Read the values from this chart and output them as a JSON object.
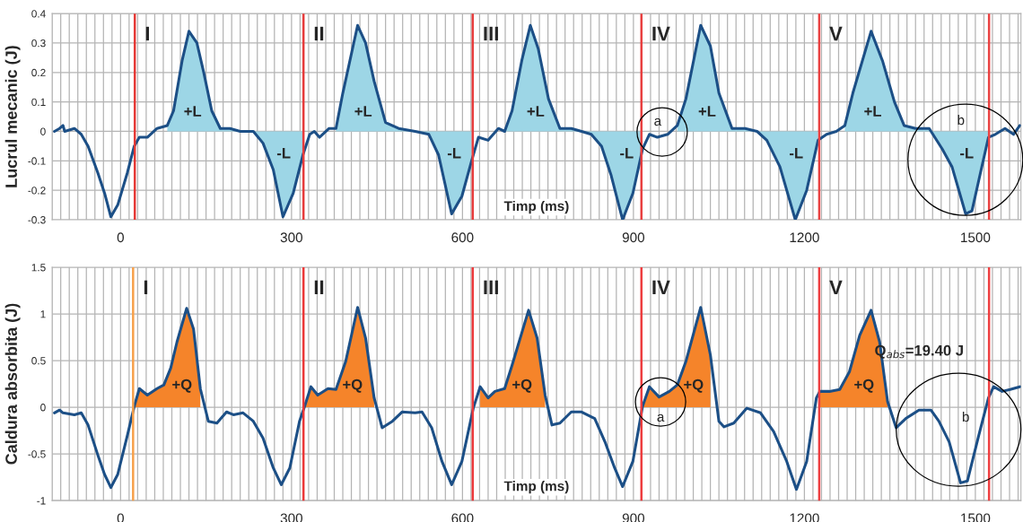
{
  "chart_data": [
    {
      "type": "line",
      "ylabel": "Lucrul mecanic (J)",
      "xlabel": "Timp (ms)",
      "x": [
        -116,
        -107,
        -101,
        -98,
        -81,
        -69,
        -57,
        -40,
        -28,
        -17,
        -5,
        12,
        24,
        33,
        47,
        64,
        82,
        93,
        108,
        120,
        134,
        146,
        160,
        175,
        192,
        210,
        233,
        250,
        268,
        285,
        303,
        320,
        332,
        340,
        349,
        366,
        378,
        390,
        416,
        430,
        445,
        465,
        488,
        517,
        541,
        558,
        581,
        599,
        616,
        628,
        645,
        663,
        674,
        687,
        704,
        719,
        733,
        751,
        771,
        791,
        809,
        826,
        844,
        861,
        881,
        899,
        916,
        928,
        942,
        960,
        977,
        992,
        1018,
        1035,
        1050,
        1073,
        1096,
        1117,
        1134,
        1157,
        1184,
        1204,
        1224,
        1239,
        1256,
        1271,
        1285,
        1317,
        1337,
        1358,
        1375,
        1395,
        1419,
        1442,
        1459,
        1483,
        1494,
        1509,
        1523,
        1535,
        1552,
        1567,
        1578
      ],
      "series": [
        {
          "type": "area",
          "color": "#9dd6e6",
          "values": [
            null,
            null,
            null,
            null,
            null,
            null,
            null,
            null,
            null,
            null,
            null,
            null,
            null,
            null,
            null,
            null,
            0.02,
            0.07,
            0.24,
            0.34,
            0.3,
            0.2,
            0.07,
            0.01,
            0.01,
            0,
            0,
            -0.04,
            -0.13,
            -0.29,
            -0.21,
            -0.08,
            null,
            null,
            null,
            null,
            0.01,
            0.13,
            0.36,
            0.3,
            0.17,
            0.03,
            0.01,
            0,
            -0.01,
            -0.08,
            -0.28,
            -0.22,
            -0.1,
            null,
            null,
            null,
            0,
            0.07,
            0.24,
            0.36,
            0.28,
            0.11,
            0.01,
            0.01,
            0,
            -0.01,
            -0.05,
            -0.15,
            -0.3,
            -0.21,
            -0.06,
            null,
            null,
            null,
            0.02,
            0.11,
            0.36,
            0.29,
            0.13,
            0.01,
            0.01,
            0,
            -0.03,
            -0.12,
            -0.3,
            -0.2,
            -0.03,
            null,
            null,
            0.02,
            0.13,
            0.34,
            0.24,
            0.1,
            0.02,
            0.01,
            0.01,
            -0.06,
            -0.12,
            -0.28,
            -0.27,
            -0.14,
            -0.02,
            null,
            null,
            null,
            null
          ]
        },
        {
          "type": "line",
          "color": "#1c4f86",
          "values": [
            0,
            0.01,
            0.02,
            0,
            0.01,
            -0.01,
            -0.05,
            -0.14,
            -0.21,
            -0.29,
            -0.25,
            -0.14,
            -0.05,
            -0.02,
            -0.02,
            0.01,
            0.02,
            0.07,
            0.24,
            0.34,
            0.3,
            0.2,
            0.07,
            0.01,
            0.01,
            0,
            0,
            -0.04,
            -0.13,
            -0.29,
            -0.21,
            -0.08,
            -0.01,
            0,
            -0.02,
            0.01,
            0.01,
            0.13,
            0.36,
            0.3,
            0.17,
            0.03,
            0.01,
            0,
            -0.01,
            -0.08,
            -0.28,
            -0.22,
            -0.1,
            -0.02,
            -0.03,
            0.01,
            0,
            0.07,
            0.24,
            0.36,
            0.28,
            0.11,
            0.01,
            0.01,
            0,
            -0.01,
            -0.05,
            -0.15,
            -0.3,
            -0.21,
            -0.06,
            -0.01,
            -0.02,
            -0.01,
            0.02,
            0.11,
            0.36,
            0.29,
            0.13,
            0.01,
            0.01,
            0,
            -0.03,
            -0.12,
            -0.3,
            -0.2,
            -0.03,
            -0.01,
            0,
            0.02,
            0.13,
            0.34,
            0.24,
            0.1,
            0.02,
            0.01,
            0.01,
            -0.06,
            -0.12,
            -0.28,
            -0.27,
            -0.14,
            -0.02,
            -0.01,
            0.01,
            -0.01,
            0.02
          ]
        }
      ],
      "xlim": [
        -120,
        1580
      ],
      "xticks": [
        {
          "value": -120,
          "label": null
        },
        {
          "value": -105,
          "label": null
        },
        {
          "value": -90,
          "label": null
        },
        {
          "value": -75,
          "label": null
        },
        {
          "value": -60,
          "label": null
        },
        {
          "value": -45,
          "label": null
        },
        {
          "value": -30,
          "label": null
        },
        {
          "value": -15,
          "label": null
        },
        0,
        {
          "value": 15,
          "label": null
        },
        {
          "value": 30,
          "label": null
        },
        {
          "value": 45,
          "label": null
        },
        {
          "value": 60,
          "label": null
        },
        {
          "value": 75,
          "label": null
        },
        {
          "value": 90,
          "label": null
        },
        {
          "value": 105,
          "label": null
        },
        {
          "value": 120,
          "label": null
        },
        {
          "value": 135,
          "label": null
        },
        {
          "value": 150,
          "label": null
        },
        {
          "value": 165,
          "label": null
        },
        {
          "value": 180,
          "label": null
        },
        {
          "value": 195,
          "label": null
        },
        {
          "value": 210,
          "label": null
        },
        {
          "value": 225,
          "label": null
        },
        {
          "value": 240,
          "label": null
        },
        {
          "value": 255,
          "label": null
        },
        {
          "value": 270,
          "label": null
        },
        {
          "value": 285,
          "label": null
        },
        300,
        {
          "value": 315,
          "label": null
        },
        {
          "value": 330,
          "label": null
        },
        {
          "value": 345,
          "label": null
        },
        {
          "value": 360,
          "label": null
        },
        {
          "value": 375,
          "label": null
        },
        {
          "value": 390,
          "label": null
        },
        {
          "value": 405,
          "label": null
        },
        {
          "value": 420,
          "label": null
        },
        {
          "value": 435,
          "label": null
        },
        {
          "value": 450,
          "label": null
        },
        {
          "value": 465,
          "label": null
        },
        {
          "value": 480,
          "label": null
        },
        {
          "value": 495,
          "label": null
        },
        {
          "value": 510,
          "label": null
        },
        {
          "value": 525,
          "label": null
        },
        {
          "value": 540,
          "label": null
        },
        {
          "value": 555,
          "label": null
        },
        {
          "value": 570,
          "label": null
        },
        {
          "value": 585,
          "label": null
        },
        600,
        {
          "value": 615,
          "label": null
        },
        {
          "value": 630,
          "label": null
        },
        {
          "value": 645,
          "label": null
        },
        {
          "value": 660,
          "label": null
        },
        {
          "value": 675,
          "label": null
        },
        {
          "value": 690,
          "label": null
        },
        {
          "value": 705,
          "label": null
        },
        {
          "value": 720,
          "label": null
        },
        {
          "value": 735,
          "label": null
        },
        {
          "value": 750,
          "label": null
        },
        {
          "value": 765,
          "label": null
        },
        {
          "value": 780,
          "label": null
        },
        {
          "value": 795,
          "label": null
        },
        {
          "value": 810,
          "label": null
        },
        {
          "value": 825,
          "label": null
        },
        {
          "value": 840,
          "label": null
        },
        {
          "value": 855,
          "label": null
        },
        {
          "value": 870,
          "label": null
        },
        {
          "value": 885,
          "label": null
        },
        900,
        {
          "value": 915,
          "label": null
        },
        {
          "value": 930,
          "label": null
        },
        {
          "value": 945,
          "label": null
        },
        {
          "value": 960,
          "label": null
        },
        {
          "value": 975,
          "label": null
        },
        {
          "value": 990,
          "label": null
        },
        {
          "value": 1005,
          "label": null
        },
        {
          "value": 1020,
          "label": null
        },
        {
          "value": 1035,
          "label": null
        },
        {
          "value": 1050,
          "label": null
        },
        {
          "value": 1065,
          "label": null
        },
        {
          "value": 1080,
          "label": null
        },
        {
          "value": 1095,
          "label": null
        },
        {
          "value": 1110,
          "label": null
        },
        {
          "value": 1125,
          "label": null
        },
        {
          "value": 1140,
          "label": null
        },
        {
          "value": 1155,
          "label": null
        },
        {
          "value": 1170,
          "label": null
        },
        {
          "value": 1185,
          "label": null
        },
        1200,
        {
          "value": 1215,
          "label": null
        },
        {
          "value": 1230,
          "label": null
        },
        {
          "value": 1245,
          "label": null
        },
        {
          "value": 1260,
          "label": null
        },
        {
          "value": 1275,
          "label": null
        },
        {
          "value": 1290,
          "label": null
        },
        {
          "value": 1305,
          "label": null
        },
        {
          "value": 1320,
          "label": null
        },
        {
          "value": 1335,
          "label": null
        },
        {
          "value": 1350,
          "label": null
        },
        {
          "value": 1365,
          "label": null
        },
        {
          "value": 1380,
          "label": null
        },
        {
          "value": 1395,
          "label": null
        },
        {
          "value": 1410,
          "label": null
        },
        {
          "value": 1425,
          "label": null
        },
        {
          "value": 1440,
          "label": null
        },
        {
          "value": 1455,
          "label": null
        },
        {
          "value": 1470,
          "label": null
        },
        {
          "value": 1485,
          "label": null
        },
        1500,
        {
          "value": 1515,
          "label": null
        },
        {
          "value": 1530,
          "label": null
        },
        {
          "value": 1545,
          "label": null
        },
        {
          "value": 1560,
          "label": null
        },
        {
          "value": 1575,
          "label": null
        }
      ],
      "ylim": [
        -0.3,
        0.4
      ],
      "yticks": [
        -0.3,
        -0.2,
        -0.1,
        0,
        0.1,
        0.2,
        0.3,
        0.4
      ],
      "grid": true,
      "marker": "none",
      "line_style": "solid",
      "ref_lines": [
        {
          "axis": "x",
          "value": 25,
          "label": "I",
          "color": "#e53935"
        },
        {
          "axis": "x",
          "value": 321,
          "label": "II",
          "color": "#e63b3b"
        },
        {
          "axis": "x",
          "value": 618,
          "label": "III",
          "color": "#e73d3d"
        },
        {
          "axis": "x",
          "value": 914,
          "label": "IV",
          "color": "#e83f3f"
        },
        {
          "axis": "x",
          "value": 1226,
          "label": "V",
          "color": "#e94141"
        },
        {
          "axis": "x",
          "value": 1524,
          "color": "#ea4343"
        }
      ],
      "annotations": [
        "+L",
        "+L",
        "+L",
        "+L",
        "+L",
        "-L",
        "-L",
        "-L",
        "-L",
        "-L",
        "a",
        "b"
      ]
    },
    {
      "type": "line",
      "ylabel": "Caldura absorbita (J)",
      "xlabel": "Timp (ms)",
      "x": [
        -116,
        -107,
        -101,
        -81,
        -69,
        -57,
        -40,
        -28,
        -17,
        -5,
        12,
        24,
        33,
        47,
        64,
        76,
        88,
        99,
        116,
        128,
        140,
        154,
        169,
        186,
        198,
        215,
        233,
        250,
        268,
        282,
        297,
        314,
        323,
        334,
        346,
        364,
        378,
        395,
        416,
        430,
        445,
        459,
        477,
        494,
        517,
        529,
        546,
        564,
        581,
        599,
        619,
        631,
        645,
        657,
        674,
        687,
        716,
        731,
        745,
        757,
        771,
        791,
        809,
        832,
        850,
        867,
        881,
        899,
        916,
        928,
        945,
        963,
        977,
        992,
        1018,
        1035,
        1050,
        1059,
        1076,
        1099,
        1123,
        1146,
        1169,
        1186,
        1204,
        1221,
        1227,
        1244,
        1262,
        1279,
        1297,
        1317,
        1332,
        1346,
        1361,
        1378,
        1401,
        1422,
        1436,
        1454,
        1474,
        1486,
        1506,
        1523,
        1532,
        1547,
        1561,
        1578
      ],
      "series": [
        {
          "type": "area",
          "color": "#f5842a",
          "values": [
            null,
            null,
            null,
            null,
            null,
            null,
            null,
            null,
            null,
            null,
            null,
            0.01,
            0.2,
            0.13,
            0.2,
            0.24,
            0.42,
            0.7,
            1.06,
            0.84,
            0.2,
            null,
            null,
            null,
            null,
            null,
            null,
            null,
            null,
            null,
            null,
            null,
            0.01,
            0.22,
            0.13,
            0.2,
            0.19,
            0.49,
            1.07,
            0.74,
            0.1,
            null,
            null,
            null,
            null,
            null,
            null,
            null,
            null,
            null,
            null,
            0.22,
            0.1,
            0.17,
            0.2,
            0.45,
            1.04,
            0.74,
            0.13,
            null,
            null,
            null,
            null,
            null,
            null,
            null,
            null,
            null,
            0.01,
            0.22,
            0.11,
            0.17,
            0.24,
            0.49,
            1.07,
            0.56,
            null,
            null,
            null,
            null,
            null,
            null,
            null,
            null,
            null,
            null,
            0.17,
            0.17,
            0.19,
            0.38,
            0.77,
            1.04,
            0.7,
            0.06,
            null,
            null,
            null,
            null,
            null,
            null,
            null,
            null,
            null,
            null,
            null,
            null,
            null,
            null
          ]
        },
        {
          "type": "line",
          "color": "#1c4f86",
          "values": [
            -0.06,
            -0.03,
            -0.06,
            -0.08,
            -0.06,
            -0.19,
            -0.51,
            -0.72,
            -0.86,
            -0.72,
            -0.3,
            0.01,
            0.2,
            0.13,
            0.2,
            0.24,
            0.42,
            0.7,
            1.06,
            0.84,
            0.2,
            -0.15,
            -0.17,
            -0.05,
            -0.08,
            -0.06,
            -0.15,
            -0.33,
            -0.65,
            -0.83,
            -0.65,
            -0.15,
            0.01,
            0.22,
            0.13,
            0.2,
            0.19,
            0.49,
            1.07,
            0.74,
            0.1,
            -0.22,
            -0.15,
            -0.05,
            -0.06,
            -0.05,
            -0.22,
            -0.58,
            -0.83,
            -0.58,
            -0.01,
            0.22,
            0.1,
            0.17,
            0.2,
            0.45,
            1.04,
            0.74,
            0.13,
            -0.19,
            -0.17,
            -0.05,
            -0.05,
            -0.12,
            -0.37,
            -0.65,
            -0.85,
            -0.58,
            0.01,
            0.22,
            0.11,
            0.17,
            0.24,
            0.49,
            1.07,
            0.56,
            -0.15,
            -0.21,
            -0.17,
            -0.01,
            -0.06,
            -0.26,
            -0.58,
            -0.88,
            -0.58,
            0.1,
            0.17,
            0.17,
            0.19,
            0.38,
            0.77,
            1.04,
            0.7,
            0.06,
            -0.22,
            -0.12,
            -0.03,
            -0.03,
            -0.15,
            -0.37,
            -0.81,
            -0.79,
            -0.3,
            0.1,
            0.22,
            0.17,
            0.19,
            0.22
          ]
        }
      ],
      "xlim": [
        -120,
        1580
      ],
      "xticks": [
        {
          "value": -120,
          "label": null
        },
        {
          "value": -105,
          "label": null
        },
        {
          "value": -90,
          "label": null
        },
        {
          "value": -75,
          "label": null
        },
        {
          "value": -60,
          "label": null
        },
        {
          "value": -45,
          "label": null
        },
        {
          "value": -30,
          "label": null
        },
        {
          "value": -15,
          "label": null
        },
        0,
        {
          "value": 15,
          "label": null
        },
        {
          "value": 30,
          "label": null
        },
        {
          "value": 45,
          "label": null
        },
        {
          "value": 60,
          "label": null
        },
        {
          "value": 75,
          "label": null
        },
        {
          "value": 90,
          "label": null
        },
        {
          "value": 105,
          "label": null
        },
        {
          "value": 120,
          "label": null
        },
        {
          "value": 135,
          "label": null
        },
        {
          "value": 150,
          "label": null
        },
        {
          "value": 165,
          "label": null
        },
        {
          "value": 180,
          "label": null
        },
        {
          "value": 195,
          "label": null
        },
        {
          "value": 210,
          "label": null
        },
        {
          "value": 225,
          "label": null
        },
        {
          "value": 240,
          "label": null
        },
        {
          "value": 255,
          "label": null
        },
        {
          "value": 270,
          "label": null
        },
        {
          "value": 285,
          "label": null
        },
        300,
        {
          "value": 315,
          "label": null
        },
        {
          "value": 330,
          "label": null
        },
        {
          "value": 345,
          "label": null
        },
        {
          "value": 360,
          "label": null
        },
        {
          "value": 375,
          "label": null
        },
        {
          "value": 390,
          "label": null
        },
        {
          "value": 405,
          "label": null
        },
        {
          "value": 420,
          "label": null
        },
        {
          "value": 435,
          "label": null
        },
        {
          "value": 450,
          "label": null
        },
        {
          "value": 465,
          "label": null
        },
        {
          "value": 480,
          "label": null
        },
        {
          "value": 495,
          "label": null
        },
        {
          "value": 510,
          "label": null
        },
        {
          "value": 525,
          "label": null
        },
        {
          "value": 540,
          "label": null
        },
        {
          "value": 555,
          "label": null
        },
        {
          "value": 570,
          "label": null
        },
        {
          "value": 585,
          "label": null
        },
        600,
        {
          "value": 615,
          "label": null
        },
        {
          "value": 630,
          "label": null
        },
        {
          "value": 645,
          "label": null
        },
        {
          "value": 660,
          "label": null
        },
        {
          "value": 675,
          "label": null
        },
        {
          "value": 690,
          "label": null
        },
        {
          "value": 705,
          "label": null
        },
        {
          "value": 720,
          "label": null
        },
        {
          "value": 735,
          "label": null
        },
        {
          "value": 750,
          "label": null
        },
        {
          "value": 765,
          "label": null
        },
        {
          "value": 780,
          "label": null
        },
        {
          "value": 795,
          "label": null
        },
        {
          "value": 810,
          "label": null
        },
        {
          "value": 825,
          "label": null
        },
        {
          "value": 840,
          "label": null
        },
        {
          "value": 855,
          "label": null
        },
        {
          "value": 870,
          "label": null
        },
        {
          "value": 885,
          "label": null
        },
        900,
        {
          "value": 915,
          "label": null
        },
        {
          "value": 930,
          "label": null
        },
        {
          "value": 945,
          "label": null
        },
        {
          "value": 960,
          "label": null
        },
        {
          "value": 975,
          "label": null
        },
        {
          "value": 990,
          "label": null
        },
        {
          "value": 1005,
          "label": null
        },
        {
          "value": 1020,
          "label": null
        },
        {
          "value": 1035,
          "label": null
        },
        {
          "value": 1050,
          "label": null
        },
        {
          "value": 1065,
          "label": null
        },
        {
          "value": 1080,
          "label": null
        },
        {
          "value": 1095,
          "label": null
        },
        {
          "value": 1110,
          "label": null
        },
        {
          "value": 1125,
          "label": null
        },
        {
          "value": 1140,
          "label": null
        },
        {
          "value": 1155,
          "label": null
        },
        {
          "value": 1170,
          "label": null
        },
        {
          "value": 1185,
          "label": null
        },
        1200,
        {
          "value": 1215,
          "label": null
        },
        {
          "value": 1230,
          "label": null
        },
        {
          "value": 1245,
          "label": null
        },
        {
          "value": 1260,
          "label": null
        },
        {
          "value": 1275,
          "label": null
        },
        {
          "value": 1290,
          "label": null
        },
        {
          "value": 1305,
          "label": null
        },
        {
          "value": 1320,
          "label": null
        },
        {
          "value": 1335,
          "label": null
        },
        {
          "value": 1350,
          "label": null
        },
        {
          "value": 1365,
          "label": null
        },
        {
          "value": 1380,
          "label": null
        },
        {
          "value": 1395,
          "label": null
        },
        {
          "value": 1410,
          "label": null
        },
        {
          "value": 1425,
          "label": null
        },
        {
          "value": 1440,
          "label": null
        },
        {
          "value": 1455,
          "label": null
        },
        {
          "value": 1470,
          "label": null
        },
        {
          "value": 1485,
          "label": null
        },
        1500,
        {
          "value": 1515,
          "label": null
        },
        {
          "value": 1530,
          "label": null
        },
        {
          "value": 1545,
          "label": null
        },
        {
          "value": 1560,
          "label": null
        },
        {
          "value": 1575,
          "label": null
        }
      ],
      "ylim": [
        -1,
        1.5
      ],
      "yticks": [
        -1,
        -0.5,
        0,
        0.5,
        1,
        1.5
      ],
      "grid": true,
      "marker": "none",
      "line_style": "solid",
      "ref_lines": [
        {
          "axis": "x",
          "value": 22,
          "label": "I",
          "color": "#f7a04a"
        },
        {
          "axis": "x",
          "value": 321,
          "label": "II",
          "color": "#eb3838"
        },
        {
          "axis": "x",
          "value": 618,
          "label": "III",
          "color": "#ec3a3c"
        },
        {
          "axis": "x",
          "value": 914,
          "label": "IV",
          "color": "#ed3c3e"
        },
        {
          "axis": "x",
          "value": 1226,
          "label": "V",
          "color": "#ee3e40"
        },
        {
          "axis": "x",
          "value": 1524,
          "color": "#ef4042"
        }
      ],
      "annotations": [
        "+Q",
        "+Q",
        "+Q",
        "+Q",
        "+Q",
        "a",
        "b",
        "Q$_{abs}$=19.40 J"
      ]
    }
  ]
}
